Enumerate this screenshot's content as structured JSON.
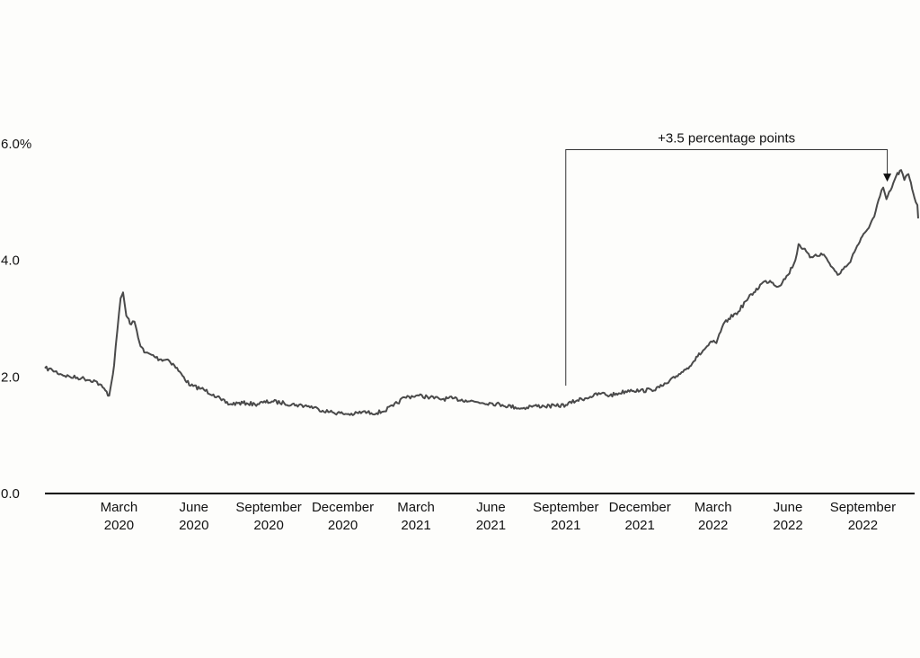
{
  "chart_data": {
    "type": "line",
    "title": "",
    "xlabel": "",
    "ylabel": "",
    "ylim": [
      0,
      6
    ],
    "grid": false,
    "legend": "none",
    "y_ticks": [
      {
        "value": 0,
        "label": "0.0"
      },
      {
        "value": 2,
        "label": "2.0"
      },
      {
        "value": 4,
        "label": "4.0"
      },
      {
        "value": 6,
        "label": "6.0%"
      }
    ],
    "x_ticks": [
      {
        "date": "2020-03-01",
        "line1": "March",
        "line2": "2020"
      },
      {
        "date": "2020-06-01",
        "line1": "June",
        "line2": "2020"
      },
      {
        "date": "2020-09-01",
        "line1": "September",
        "line2": "2020"
      },
      {
        "date": "2020-12-01",
        "line1": "December",
        "line2": "2020"
      },
      {
        "date": "2021-03-01",
        "line1": "March",
        "line2": "2021"
      },
      {
        "date": "2021-06-01",
        "line1": "June",
        "line2": "2021"
      },
      {
        "date": "2021-09-01",
        "line1": "September",
        "line2": "2021"
      },
      {
        "date": "2021-12-01",
        "line1": "December",
        "line2": "2021"
      },
      {
        "date": "2022-03-01",
        "line1": "March",
        "line2": "2022"
      },
      {
        "date": "2022-06-01",
        "line1": "June",
        "line2": "2022"
      },
      {
        "date": "2022-09-01",
        "line1": "September",
        "line2": "2022"
      }
    ],
    "x_range": [
      "2019-12-01",
      "2022-11-08"
    ],
    "series": [
      {
        "color": "#4a4a4a",
        "points": [
          [
            "2019-12-01",
            2.15
          ],
          [
            "2019-12-10",
            2.12
          ],
          [
            "2019-12-20",
            2.05
          ],
          [
            "2020-01-01",
            2.0
          ],
          [
            "2020-01-15",
            1.98
          ],
          [
            "2020-02-01",
            1.93
          ],
          [
            "2020-02-10",
            1.82
          ],
          [
            "2020-02-18",
            1.68
          ],
          [
            "2020-02-24",
            2.2
          ],
          [
            "2020-02-28",
            2.8
          ],
          [
            "2020-03-03",
            3.35
          ],
          [
            "2020-03-06",
            3.45
          ],
          [
            "2020-03-10",
            3.05
          ],
          [
            "2020-03-16",
            2.9
          ],
          [
            "2020-03-20",
            2.95
          ],
          [
            "2020-03-26",
            2.6
          ],
          [
            "2020-04-01",
            2.42
          ],
          [
            "2020-04-10",
            2.38
          ],
          [
            "2020-04-20",
            2.3
          ],
          [
            "2020-04-30",
            2.3
          ],
          [
            "2020-05-08",
            2.2
          ],
          [
            "2020-05-18",
            2.02
          ],
          [
            "2020-05-28",
            1.85
          ],
          [
            "2020-06-10",
            1.8
          ],
          [
            "2020-06-25",
            1.7
          ],
          [
            "2020-07-05",
            1.6
          ],
          [
            "2020-07-15",
            1.53
          ],
          [
            "2020-07-25",
            1.55
          ],
          [
            "2020-08-05",
            1.55
          ],
          [
            "2020-08-15",
            1.53
          ],
          [
            "2020-08-25",
            1.56
          ],
          [
            "2020-09-05",
            1.58
          ],
          [
            "2020-09-20",
            1.55
          ],
          [
            "2020-10-05",
            1.52
          ],
          [
            "2020-10-20",
            1.5
          ],
          [
            "2020-11-01",
            1.45
          ],
          [
            "2020-11-15",
            1.4
          ],
          [
            "2020-12-01",
            1.37
          ],
          [
            "2020-12-15",
            1.36
          ],
          [
            "2020-12-25",
            1.4
          ],
          [
            "2021-01-05",
            1.38
          ],
          [
            "2021-01-18",
            1.4
          ],
          [
            "2021-02-01",
            1.5
          ],
          [
            "2021-02-15",
            1.65
          ],
          [
            "2021-03-01",
            1.68
          ],
          [
            "2021-03-15",
            1.66
          ],
          [
            "2021-03-30",
            1.62
          ],
          [
            "2021-04-15",
            1.63
          ],
          [
            "2021-05-01",
            1.6
          ],
          [
            "2021-05-15",
            1.57
          ],
          [
            "2021-06-01",
            1.55
          ],
          [
            "2021-06-15",
            1.52
          ],
          [
            "2021-07-01",
            1.48
          ],
          [
            "2021-07-10",
            1.46
          ],
          [
            "2021-07-20",
            1.5
          ],
          [
            "2021-08-05",
            1.5
          ],
          [
            "2021-08-20",
            1.5
          ],
          [
            "2021-09-01",
            1.52
          ],
          [
            "2021-09-15",
            1.6
          ],
          [
            "2021-10-01",
            1.66
          ],
          [
            "2021-10-15",
            1.72
          ],
          [
            "2021-10-25",
            1.68
          ],
          [
            "2021-11-05",
            1.72
          ],
          [
            "2021-11-20",
            1.78
          ],
          [
            "2021-12-01",
            1.76
          ],
          [
            "2021-12-15",
            1.78
          ],
          [
            "2021-12-25",
            1.82
          ],
          [
            "2022-01-05",
            1.9
          ],
          [
            "2022-01-18",
            2.05
          ],
          [
            "2022-01-28",
            2.15
          ],
          [
            "2022-02-10",
            2.35
          ],
          [
            "2022-02-20",
            2.5
          ],
          [
            "2022-02-28",
            2.6
          ],
          [
            "2022-03-05",
            2.58
          ],
          [
            "2022-03-12",
            2.85
          ],
          [
            "2022-03-20",
            3.0
          ],
          [
            "2022-04-01",
            3.12
          ],
          [
            "2022-04-10",
            3.3
          ],
          [
            "2022-04-20",
            3.45
          ],
          [
            "2022-05-01",
            3.62
          ],
          [
            "2022-05-10",
            3.65
          ],
          [
            "2022-05-20",
            3.55
          ],
          [
            "2022-06-01",
            3.75
          ],
          [
            "2022-06-10",
            4.0
          ],
          [
            "2022-06-14",
            4.28
          ],
          [
            "2022-06-20",
            4.2
          ],
          [
            "2022-06-28",
            4.05
          ],
          [
            "2022-07-05",
            4.1
          ],
          [
            "2022-07-15",
            4.1
          ],
          [
            "2022-07-22",
            3.95
          ],
          [
            "2022-08-01",
            3.75
          ],
          [
            "2022-08-08",
            3.85
          ],
          [
            "2022-08-15",
            3.95
          ],
          [
            "2022-08-25",
            4.25
          ],
          [
            "2022-09-05",
            4.5
          ],
          [
            "2022-09-15",
            4.75
          ],
          [
            "2022-09-22",
            5.1
          ],
          [
            "2022-09-26",
            5.25
          ],
          [
            "2022-09-30",
            5.05
          ],
          [
            "2022-10-05",
            5.2
          ],
          [
            "2022-10-12",
            5.45
          ],
          [
            "2022-10-18",
            5.55
          ],
          [
            "2022-10-22",
            5.38
          ],
          [
            "2022-10-27",
            5.48
          ],
          [
            "2022-11-02",
            5.15
          ],
          [
            "2022-11-05",
            5.0
          ],
          [
            "2022-11-07",
            4.95
          ],
          [
            "2022-11-08",
            4.72
          ]
        ]
      }
    ],
    "annotation": {
      "text": "+3.5 percentage points",
      "from_date": "2021-09-01",
      "from_value": 1.85,
      "to_date": "2022-10-01",
      "to_value": 5.35,
      "bracket_level": 5.9
    }
  }
}
